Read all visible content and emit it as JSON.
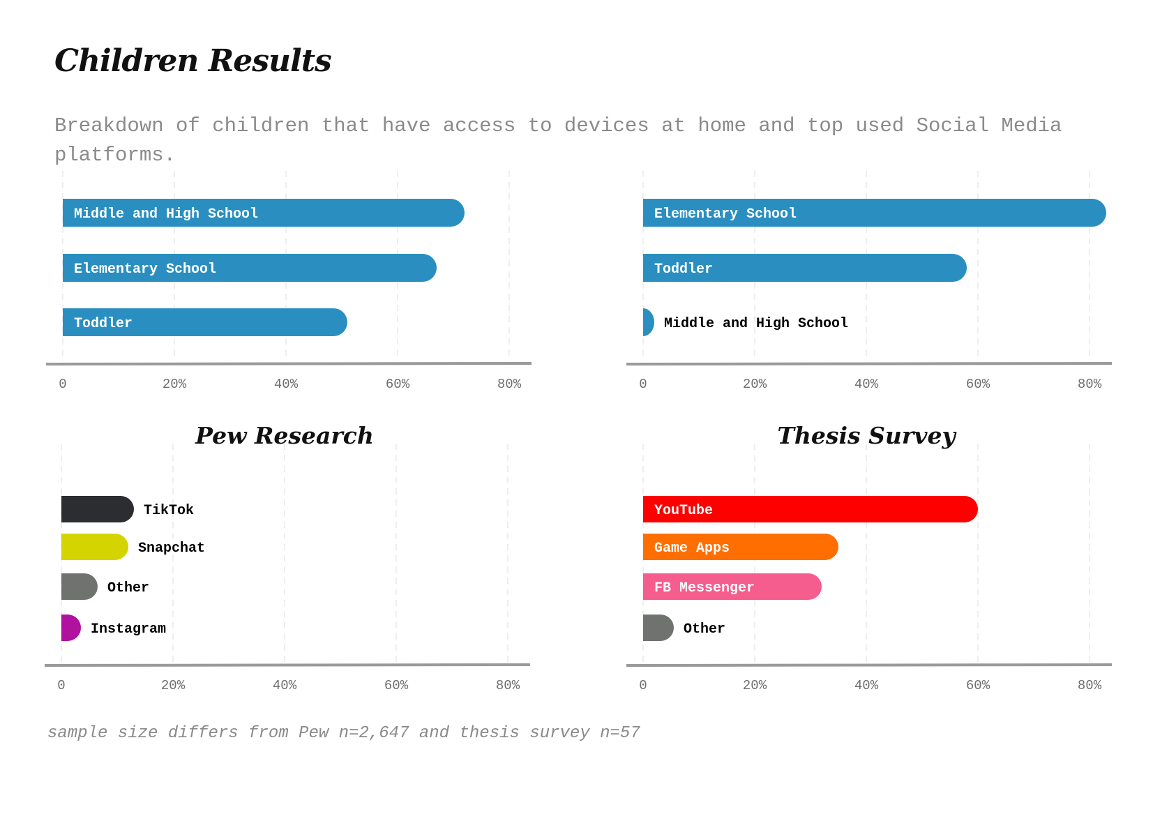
{
  "page": {
    "title": "Children Results",
    "subtitle": "Breakdown of children that have access to devices at home and top used Social Media platforms.",
    "footnote": "sample size differs from Pew n=2,647 and thesis survey n=57"
  },
  "chart_data": [
    {
      "id": "device-access-pew",
      "type": "bar",
      "orientation": "horizontal",
      "title": "",
      "categories": [
        "Middle and High School",
        "Elementary School",
        "Toddler"
      ],
      "values": [
        72,
        67,
        51
      ],
      "colors": [
        "#2a8fc0",
        "#2a8fc0",
        "#2a8fc0"
      ],
      "xlim": [
        0,
        81
      ],
      "xticks": [
        "0",
        "20%",
        "40%",
        "60%",
        "80%"
      ],
      "label_color": "#ffffff"
    },
    {
      "id": "device-access-thesis",
      "type": "bar",
      "orientation": "horizontal",
      "title": "",
      "categories": [
        "Elementary School",
        "Toddler",
        "Middle and High School"
      ],
      "values": [
        83,
        58,
        2
      ],
      "colors": [
        "#2a8fc0",
        "#2a8fc0",
        "#2a8fc0"
      ],
      "xlim": [
        0,
        81
      ],
      "xticks": [
        "0",
        "20%",
        "40%",
        "60%",
        "80%"
      ],
      "label_color": "#ffffff"
    },
    {
      "id": "social-media-pew",
      "type": "bar",
      "orientation": "horizontal",
      "title": "Pew Research",
      "categories": [
        "TikTok",
        "Snapchat",
        "Other",
        "Instagram"
      ],
      "values": [
        13,
        12,
        6.5,
        3.5
      ],
      "colors": [
        "#2b2d30",
        "#d4d400",
        "#707270",
        "#b0119e"
      ],
      "xlim": [
        0,
        81
      ],
      "xticks": [
        "0",
        "20%",
        "40%",
        "60%",
        "80%"
      ],
      "label_color": "#000000"
    },
    {
      "id": "social-media-thesis",
      "type": "bar",
      "orientation": "horizontal",
      "title": "Thesis Survey",
      "categories": [
        "YouTube",
        "Game Apps",
        "FB Messenger",
        "Other"
      ],
      "values": [
        60,
        35,
        32,
        5.5
      ],
      "colors": [
        "#fe0000",
        "#ff6e00",
        "#f45d8d",
        "#707270"
      ],
      "xlim": [
        0,
        81
      ],
      "xticks": [
        "0",
        "20%",
        "40%",
        "60%",
        "80%"
      ],
      "label_color": "#ffffff"
    }
  ]
}
